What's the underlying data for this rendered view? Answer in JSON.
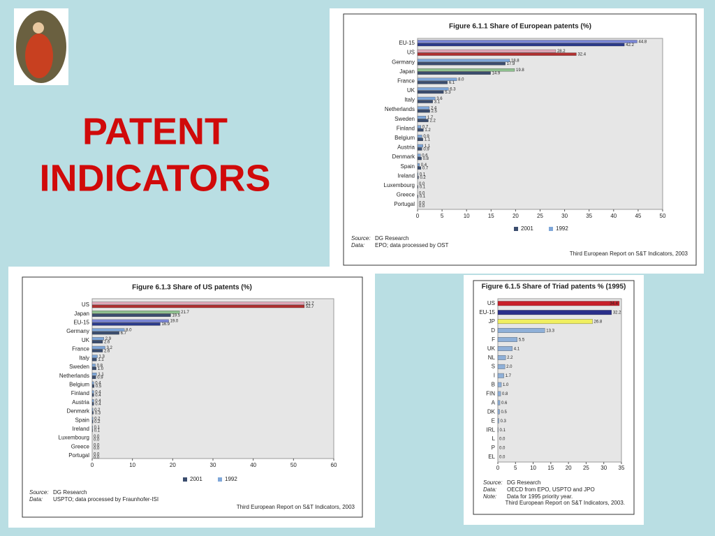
{
  "slide_title": [
    "PATENT",
    "INDICATORS"
  ],
  "chart_data": [
    {
      "type": "bar",
      "title": "Figure 6.1.1  Share of European patents (%)",
      "categories": [
        "EU-15",
        "US",
        "Germany",
        "Japan",
        "France",
        "UK",
        "Italy",
        "Netherlands",
        "Sweden",
        "Finland",
        "Belgium",
        "Austria",
        "Denmark",
        "Spain",
        "Ireland",
        "Luxembourg",
        "Greece",
        "Portugal"
      ],
      "series": [
        {
          "name": "2001",
          "color": "#3b4d6e",
          "colors": [
            "#2a3a8a",
            "#b03030"
          ],
          "values": [
            42.2,
            32.4,
            17.9,
            14.9,
            6.1,
            5.3,
            3.1,
            2.5,
            2.2,
            1.2,
            1.1,
            0.9,
            0.8,
            0.7,
            0.2,
            0.1,
            0.1,
            0.0
          ],
          "value_labels": [
            "42.2",
            "32.4",
            "17.9",
            "14.9",
            "6.1",
            "5.3",
            "3.1",
            "2.5",
            "2.2",
            "1.2",
            "1.1",
            "0.9",
            "0.8",
            "0.7",
            "0.2",
            "0.1",
            "0.1",
            "0.0"
          ]
        },
        {
          "name": "1992",
          "color": "#7fa7d9",
          "colors": [
            "#7a86d6",
            "#e0a8b8",
            "#7fa7d9",
            "#8fc08f"
          ],
          "values": [
            44.8,
            28.2,
            18.8,
            19.8,
            8.0,
            6.3,
            3.6,
            2.4,
            1.7,
            0.7,
            0.9,
            1.1,
            0.6,
            0.4,
            0.1,
            0.0,
            0.0,
            0.0
          ],
          "value_labels": [
            "44.8",
            "28.2",
            "18.8",
            "19.8",
            "8.0",
            "6.3",
            "3.6",
            "2.4",
            "1.7",
            "0.7",
            "0.9",
            "1.1",
            "0.6",
            "0.4",
            "0.1",
            "0.0",
            "0.0",
            "0.0"
          ]
        }
      ],
      "xlim": [
        0,
        50
      ],
      "xticks": [
        0,
        5,
        10,
        15,
        20,
        25,
        30,
        35,
        40,
        45,
        50
      ],
      "notes": [
        {
          "label": "Source:",
          "text": "DG Research"
        },
        {
          "label": "Data:",
          "text": "EPO; data processed by OST"
        }
      ],
      "footer": "Third European Report on S&T Indicators, 2003"
    },
    {
      "type": "bar",
      "title": "Figure 6.1.3  Share of US patents (%)",
      "categories": [
        "US",
        "Japan",
        "EU-15",
        "Germany",
        "UK",
        "France",
        "Italy",
        "Sweden",
        "Netherlands",
        "Belgium",
        "Finland",
        "Austria",
        "Denmark",
        "Spain",
        "Ireland",
        "Luxembourg",
        "Greece",
        "Portugal"
      ],
      "series": [
        {
          "name": "2001",
          "color": "#3b4d6e",
          "colors": [
            "#b03030",
            "#3b4d6e",
            "#2a3a8a"
          ],
          "values": [
            52.7,
            19.5,
            16.9,
            6.7,
            2.6,
            2.6,
            1.1,
            1.0,
            0.9,
            0.5,
            0.4,
            0.4,
            0.3,
            0.2,
            0.1,
            0.0,
            0.0,
            0.0
          ],
          "value_labels": [
            "52.7",
            "19.5",
            "16.9",
            "6.7",
            "2.6",
            "2.6",
            "1.1",
            "1.0",
            "0.9",
            "0.5",
            "0.4",
            "0.4",
            "0.3",
            "0.2",
            "0.1",
            "0.0",
            "0.0",
            "0.0"
          ]
        },
        {
          "name": "1992",
          "color": "#7fa7d9",
          "colors": [
            "#e0a8b8",
            "#8fc08f",
            "#7a86d6"
          ],
          "values": [
            52.7,
            21.7,
            19.0,
            8.0,
            2.9,
            3.2,
            1.3,
            0.8,
            1.1,
            0.4,
            0.4,
            0.4,
            0.2,
            0.2,
            0.1,
            0.0,
            0.0,
            0.0
          ],
          "value_labels": [
            "52.7",
            "21.7",
            "19.0",
            "8.0",
            "2.9",
            "3.2",
            "1.3",
            "0.8",
            "1.1",
            "0.4",
            "0.4",
            "0.4",
            "0.2",
            "0.2",
            "0.1",
            "0.0",
            "0.0",
            "0.0"
          ]
        }
      ],
      "xlim": [
        0,
        60
      ],
      "xticks": [
        0,
        10,
        20,
        30,
        40,
        50,
        60
      ],
      "notes": [
        {
          "label": "Source:",
          "text": "DG Research"
        },
        {
          "label": "Data:",
          "text": "USPTO; data processed by Fraunhofer-ISI"
        }
      ],
      "footer": "Third European Report on S&T Indicators, 2003"
    },
    {
      "type": "bar",
      "title": "Figure 6.1.5  Share of Triad patents % (1995)",
      "categories": [
        "US",
        "EU-15",
        "JP",
        "D",
        "F",
        "UK",
        "NL",
        "S",
        "I",
        "B",
        "FIN",
        "A",
        "DK",
        "E",
        "IRL",
        "L",
        "P",
        "EL"
      ],
      "series": [
        {
          "color": "#8fb0d8",
          "colors": [
            "#c8202a",
            "#2a2f8a",
            "#f0ef60"
          ],
          "values": [
            34.4,
            32.2,
            26.8,
            13.3,
            5.5,
            4.1,
            2.2,
            2.0,
            1.7,
            1.0,
            0.8,
            0.6,
            0.5,
            0.3,
            0.1,
            0.0,
            0.0,
            0.0
          ],
          "value_labels": [
            "34.4",
            "32.2",
            "26.8",
            "13.3",
            "5.5",
            "4.1",
            "2.2",
            "2.0",
            "1.7",
            "1.0",
            "0.8",
            "0.6",
            "0.5",
            "0.3",
            "0.1",
            "0.0",
            "0.0",
            "0.0"
          ]
        }
      ],
      "xlim": [
        0,
        35
      ],
      "xticks": [
        0,
        5,
        10,
        15,
        20,
        25,
        30,
        35
      ],
      "notes": [
        {
          "label": "Source:",
          "text": "DG Research"
        },
        {
          "label": "Data:",
          "text": "OECD from EPO, USPTO and JPO"
        },
        {
          "label": "Note:",
          "text": "Data for 1995 priority year."
        }
      ],
      "footer": "Third European Report on S&T Indicators, 2003."
    }
  ]
}
